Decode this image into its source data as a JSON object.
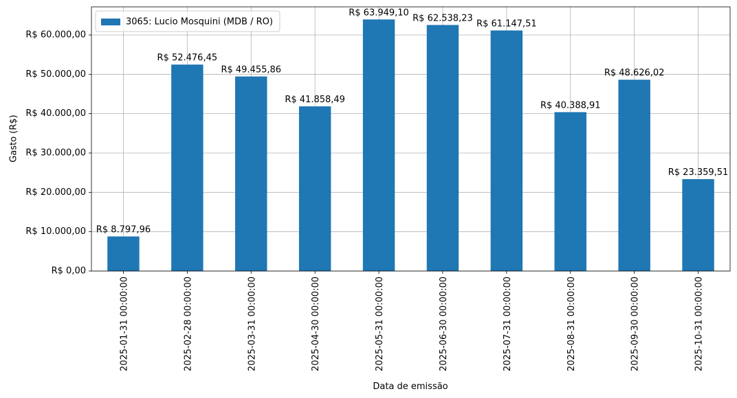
{
  "chart_data": {
    "type": "bar",
    "xlabel": "Data de emissão",
    "ylabel": "Gasto (R$)",
    "categories": [
      "2025-01-31 00:00:00",
      "2025-02-28 00:00:00",
      "2025-03-31 00:00:00",
      "2025-04-30 00:00:00",
      "2025-05-31 00:00:00",
      "2025-06-30 00:00:00",
      "2025-07-31 00:00:00",
      "2025-08-31 00:00:00",
      "2025-09-30 00:00:00",
      "2025-10-31 00:00:00"
    ],
    "series": [
      {
        "name": "3065: Lucio Mosquini (MDB / RO)",
        "color": "#1f77b4",
        "values": [
          8797.96,
          52476.45,
          49455.86,
          41858.49,
          63949.1,
          62538.23,
          61147.51,
          40388.91,
          48626.02,
          23359.51
        ],
        "value_labels": [
          "R$ 8.797,96",
          "R$ 52.476,45",
          "R$ 49.455,86",
          "R$ 41.858,49",
          "R$ 63.949,10",
          "R$ 62.538,23",
          "R$ 61.147,51",
          "R$ 40.388,91",
          "R$ 48.626,02",
          "R$ 23.359,51"
        ]
      }
    ],
    "ylim": [
      0,
      67146.6
    ],
    "yticks": [
      {
        "value": 0,
        "label": "R$ 0,00"
      },
      {
        "value": 10000,
        "label": "R$ 10.000,00"
      },
      {
        "value": 20000,
        "label": "R$ 20.000,00"
      },
      {
        "value": 30000,
        "label": "R$ 30.000,00"
      },
      {
        "value": 40000,
        "label": "R$ 40.000,00"
      },
      {
        "value": 50000,
        "label": "R$ 50.000,00"
      },
      {
        "value": 60000,
        "label": "R$ 60.000,00"
      }
    ],
    "grid": true,
    "legend": "upper left"
  }
}
